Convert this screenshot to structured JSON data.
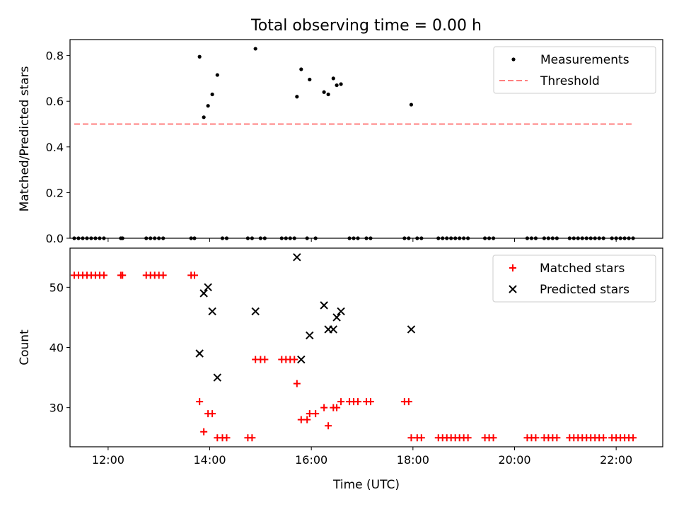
{
  "chart_data": [
    {
      "type": "scatter",
      "title": "Total observing time = 0.00 h",
      "xlabel": "",
      "ylabel": "Matched/Predicted stars",
      "xlim": [
        "11:15",
        "22:55"
      ],
      "ylim": [
        0,
        0.87
      ],
      "yticks": [
        0.0,
        0.2,
        0.4,
        0.6,
        0.8
      ],
      "ytick_labels": [
        "0.0",
        "0.2",
        "0.4",
        "0.6",
        "0.8"
      ],
      "grid": false,
      "legend": "upper right",
      "series": [
        {
          "name": "Measurements",
          "marker": "dot",
          "color": "#000000",
          "points": [
            [
              "11:20",
              0
            ],
            [
              "11:25",
              0
            ],
            [
              "11:30",
              0
            ],
            [
              "11:35",
              0
            ],
            [
              "11:40",
              0
            ],
            [
              "11:45",
              0
            ],
            [
              "11:50",
              0
            ],
            [
              "11:55",
              0
            ],
            [
              "12:15",
              0
            ],
            [
              "12:17",
              0
            ],
            [
              "12:45",
              0
            ],
            [
              "12:50",
              0
            ],
            [
              "12:55",
              0
            ],
            [
              "13:00",
              0
            ],
            [
              "13:05",
              0
            ],
            [
              "13:38",
              0
            ],
            [
              "13:42",
              0
            ],
            [
              "13:48",
              0.795
            ],
            [
              "13:53",
              0.53
            ],
            [
              "13:58",
              0.58
            ],
            [
              "14:03",
              0.63
            ],
            [
              "14:09",
              0.715
            ],
            [
              "14:15",
              0
            ],
            [
              "14:20",
              0
            ],
            [
              "14:45",
              0
            ],
            [
              "14:50",
              0
            ],
            [
              "14:54",
              0.83
            ],
            [
              "15:00",
              0
            ],
            [
              "15:05",
              0
            ],
            [
              "15:25",
              0
            ],
            [
              "15:30",
              0
            ],
            [
              "15:35",
              0
            ],
            [
              "15:40",
              0
            ],
            [
              "15:43",
              0.62
            ],
            [
              "15:48",
              0.74
            ],
            [
              "15:55",
              0
            ],
            [
              "15:58",
              0.695
            ],
            [
              "16:05",
              0
            ],
            [
              "16:15",
              0.64
            ],
            [
              "16:20",
              0.63
            ],
            [
              "16:26",
              0.7
            ],
            [
              "16:30",
              0.67
            ],
            [
              "16:35",
              0.675
            ],
            [
              "16:45",
              0
            ],
            [
              "16:50",
              0
            ],
            [
              "16:55",
              0
            ],
            [
              "17:05",
              0
            ],
            [
              "17:10",
              0
            ],
            [
              "17:50",
              0
            ],
            [
              "17:55",
              0
            ],
            [
              "17:58",
              0.585
            ],
            [
              "18:05",
              0
            ],
            [
              "18:10",
              0
            ],
            [
              "18:30",
              0
            ],
            [
              "18:35",
              0
            ],
            [
              "18:40",
              0
            ],
            [
              "18:45",
              0
            ],
            [
              "18:50",
              0
            ],
            [
              "18:55",
              0
            ],
            [
              "19:00",
              0
            ],
            [
              "19:05",
              0
            ],
            [
              "19:25",
              0
            ],
            [
              "19:30",
              0
            ],
            [
              "19:35",
              0
            ],
            [
              "20:15",
              0
            ],
            [
              "20:20",
              0
            ],
            [
              "20:25",
              0
            ],
            [
              "20:35",
              0
            ],
            [
              "20:40",
              0
            ],
            [
              "20:45",
              0
            ],
            [
              "20:50",
              0
            ],
            [
              "21:05",
              0
            ],
            [
              "21:10",
              0
            ],
            [
              "21:15",
              0
            ],
            [
              "21:20",
              0
            ],
            [
              "21:25",
              0
            ],
            [
              "21:30",
              0
            ],
            [
              "21:35",
              0
            ],
            [
              "21:40",
              0
            ],
            [
              "21:45",
              0
            ],
            [
              "21:55",
              0
            ],
            [
              "22:00",
              0
            ],
            [
              "22:05",
              0
            ],
            [
              "22:10",
              0
            ],
            [
              "22:15",
              0
            ],
            [
              "22:20",
              0
            ]
          ]
        },
        {
          "name": "Threshold",
          "marker": "dashed-line",
          "color": "#ff7f7f",
          "x_range": [
            "11:20",
            "22:20"
          ],
          "value": 0.5
        }
      ]
    },
    {
      "type": "scatter",
      "title": "",
      "xlabel": "Time (UTC)",
      "ylabel": "Count",
      "xlim": [
        "11:15",
        "22:55"
      ],
      "ylim": [
        23.5,
        56.5
      ],
      "xticks": [
        "12:00",
        "14:00",
        "16:00",
        "18:00",
        "20:00",
        "22:00"
      ],
      "yticks": [
        30,
        40,
        50
      ],
      "ytick_labels": [
        "30",
        "40",
        "50"
      ],
      "grid": false,
      "legend": "upper right",
      "series": [
        {
          "name": "Matched stars",
          "marker": "plus",
          "color": "#ff0000",
          "points": [
            [
              "11:20",
              52
            ],
            [
              "11:25",
              52
            ],
            [
              "11:30",
              52
            ],
            [
              "11:35",
              52
            ],
            [
              "11:40",
              52
            ],
            [
              "11:45",
              52
            ],
            [
              "11:50",
              52
            ],
            [
              "11:55",
              52
            ],
            [
              "12:15",
              52
            ],
            [
              "12:17",
              52
            ],
            [
              "12:45",
              52
            ],
            [
              "12:50",
              52
            ],
            [
              "12:55",
              52
            ],
            [
              "13:00",
              52
            ],
            [
              "13:05",
              52
            ],
            [
              "13:38",
              52
            ],
            [
              "13:42",
              52
            ],
            [
              "13:48",
              31
            ],
            [
              "13:53",
              26
            ],
            [
              "13:58",
              29
            ],
            [
              "14:03",
              29
            ],
            [
              "14:09",
              25
            ],
            [
              "14:15",
              25
            ],
            [
              "14:20",
              25
            ],
            [
              "14:45",
              25
            ],
            [
              "14:50",
              25
            ],
            [
              "14:54",
              38
            ],
            [
              "15:00",
              38
            ],
            [
              "15:05",
              38
            ],
            [
              "15:25",
              38
            ],
            [
              "15:30",
              38
            ],
            [
              "15:35",
              38
            ],
            [
              "15:40",
              38
            ],
            [
              "15:43",
              34
            ],
            [
              "15:48",
              28
            ],
            [
              "15:55",
              28
            ],
            [
              "15:58",
              29
            ],
            [
              "16:05",
              29
            ],
            [
              "16:15",
              30
            ],
            [
              "16:20",
              27
            ],
            [
              "16:26",
              30
            ],
            [
              "16:30",
              30
            ],
            [
              "16:35",
              31
            ],
            [
              "16:45",
              31
            ],
            [
              "16:50",
              31
            ],
            [
              "16:55",
              31
            ],
            [
              "17:05",
              31
            ],
            [
              "17:10",
              31
            ],
            [
              "17:50",
              31
            ],
            [
              "17:55",
              31
            ],
            [
              "17:58",
              25
            ],
            [
              "18:05",
              25
            ],
            [
              "18:10",
              25
            ],
            [
              "18:30",
              25
            ],
            [
              "18:35",
              25
            ],
            [
              "18:40",
              25
            ],
            [
              "18:45",
              25
            ],
            [
              "18:50",
              25
            ],
            [
              "18:55",
              25
            ],
            [
              "19:00",
              25
            ],
            [
              "19:05",
              25
            ],
            [
              "19:25",
              25
            ],
            [
              "19:30",
              25
            ],
            [
              "19:35",
              25
            ],
            [
              "20:15",
              25
            ],
            [
              "20:20",
              25
            ],
            [
              "20:25",
              25
            ],
            [
              "20:35",
              25
            ],
            [
              "20:40",
              25
            ],
            [
              "20:45",
              25
            ],
            [
              "20:50",
              25
            ],
            [
              "21:05",
              25
            ],
            [
              "21:10",
              25
            ],
            [
              "21:15",
              25
            ],
            [
              "21:20",
              25
            ],
            [
              "21:25",
              25
            ],
            [
              "21:30",
              25
            ],
            [
              "21:35",
              25
            ],
            [
              "21:40",
              25
            ],
            [
              "21:45",
              25
            ],
            [
              "21:55",
              25
            ],
            [
              "22:00",
              25
            ],
            [
              "22:05",
              25
            ],
            [
              "22:10",
              25
            ],
            [
              "22:15",
              25
            ],
            [
              "22:20",
              25
            ]
          ]
        },
        {
          "name": "Predicted stars",
          "marker": "x",
          "color": "#000000",
          "points": [
            [
              "13:48",
              39
            ],
            [
              "13:53",
              49
            ],
            [
              "13:58",
              50
            ],
            [
              "14:03",
              46
            ],
            [
              "14:09",
              35
            ],
            [
              "14:54",
              46
            ],
            [
              "15:43",
              55
            ],
            [
              "15:48",
              38
            ],
            [
              "15:58",
              42
            ],
            [
              "16:15",
              47
            ],
            [
              "16:20",
              43
            ],
            [
              "16:26",
              43
            ],
            [
              "16:30",
              45
            ],
            [
              "16:35",
              46
            ],
            [
              "17:58",
              43
            ]
          ]
        }
      ]
    }
  ]
}
